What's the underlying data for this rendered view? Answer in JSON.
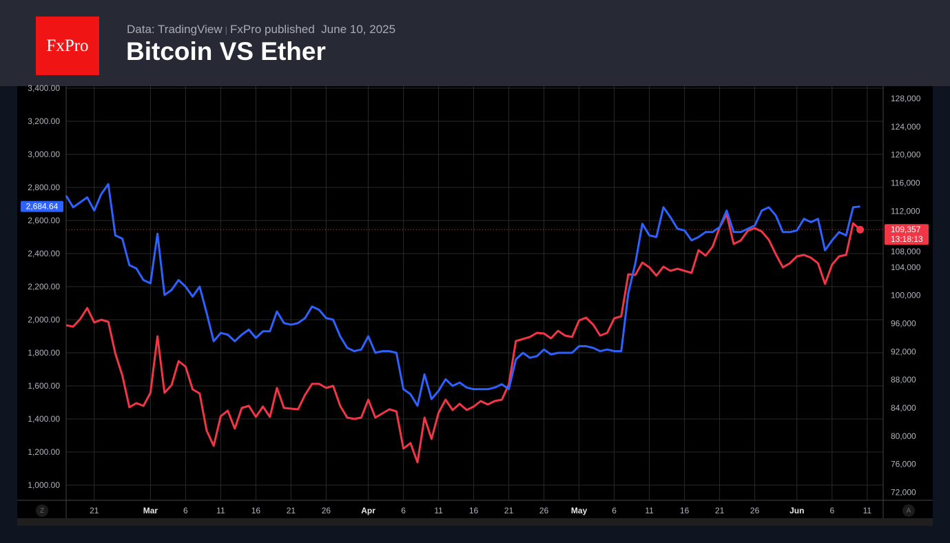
{
  "header": {
    "logo_text": "FxPro",
    "source": "Data: TradingView",
    "separator": "|",
    "publisher": "FxPro published",
    "date": "June 10, 2025",
    "title": "Bitcoin VS Ether"
  },
  "controls": {
    "left_button": "Z",
    "right_button": "A"
  },
  "chart_data": {
    "type": "line",
    "title": "Bitcoin VS Ether",
    "x_start": "2025-02-17",
    "x_interval_days": 1,
    "x_ticks": [
      {
        "day": 4,
        "label": "21",
        "bold": false
      },
      {
        "day": 12,
        "label": "Mar",
        "bold": true
      },
      {
        "day": 17,
        "label": "6",
        "bold": false
      },
      {
        "day": 22,
        "label": "11",
        "bold": false
      },
      {
        "day": 27,
        "label": "16",
        "bold": false
      },
      {
        "day": 32,
        "label": "21",
        "bold": false
      },
      {
        "day": 37,
        "label": "26",
        "bold": false
      },
      {
        "day": 43,
        "label": "Apr",
        "bold": true
      },
      {
        "day": 48,
        "label": "6",
        "bold": false
      },
      {
        "day": 53,
        "label": "11",
        "bold": false
      },
      {
        "day": 58,
        "label": "16",
        "bold": false
      },
      {
        "day": 63,
        "label": "21",
        "bold": false
      },
      {
        "day": 68,
        "label": "26",
        "bold": false
      },
      {
        "day": 73,
        "label": "May",
        "bold": true
      },
      {
        "day": 78,
        "label": "6",
        "bold": false
      },
      {
        "day": 83,
        "label": "11",
        "bold": false
      },
      {
        "day": 88,
        "label": "16",
        "bold": false
      },
      {
        "day": 93,
        "label": "21",
        "bold": false
      },
      {
        "day": 98,
        "label": "26",
        "bold": false
      },
      {
        "day": 104,
        "label": "Jun",
        "bold": true
      },
      {
        "day": 109,
        "label": "6",
        "bold": false
      },
      {
        "day": 114,
        "label": "11",
        "bold": false
      }
    ],
    "left_axis": {
      "ylim": [
        1000,
        3400
      ],
      "ticks": [
        3400,
        3200,
        3000,
        2800,
        2600,
        2400,
        2200,
        2000,
        1800,
        1600,
        1400,
        1200,
        1000
      ],
      "tick_labels": [
        "3,400.00",
        "3,200.00",
        "3,000.00",
        "2,800.00",
        "2,600.00",
        "2,400.00",
        "2,200.00",
        "2,000.00",
        "1,800.00",
        "1,600.00",
        "1,400.00",
        "1,200.00",
        "1,000.00"
      ]
    },
    "right_axis": {
      "ylim": [
        72000,
        128000
      ],
      "ticks": [
        128000,
        124000,
        120000,
        116000,
        112000,
        108000,
        104000,
        100000,
        96000,
        92000,
        88000,
        84000,
        80000,
        76000,
        72000
      ],
      "tick_labels": [
        "128,000",
        "124,000",
        "120,000",
        "116,000",
        "112,000",
        "108,000",
        "104,000",
        "100,000",
        "96,000",
        "92,000",
        "88,000",
        "84,000",
        "80,000",
        "76,000",
        "72,000"
      ]
    },
    "grid": true,
    "series": [
      {
        "name": "Ether",
        "axis": "left",
        "color": "#2e62ff",
        "last_label": "2,684.64",
        "values": [
          2750,
          2680,
          2710,
          2740,
          2660,
          2760,
          2820,
          2510,
          2490,
          2330,
          2310,
          2240,
          2220,
          2520,
          2150,
          2180,
          2240,
          2200,
          2140,
          2200,
          2040,
          1870,
          1920,
          1910,
          1870,
          1910,
          1940,
          1890,
          1930,
          1930,
          2050,
          1980,
          1970,
          1980,
          2010,
          2080,
          2060,
          2010,
          2000,
          1900,
          1830,
          1810,
          1820,
          1900,
          1800,
          1810,
          1810,
          1800,
          1580,
          1550,
          1480,
          1670,
          1520,
          1570,
          1640,
          1600,
          1620,
          1590,
          1580,
          1580,
          1580,
          1590,
          1610,
          1580,
          1760,
          1800,
          1770,
          1780,
          1820,
          1790,
          1800,
          1800,
          1800,
          1840,
          1840,
          1830,
          1810,
          1820,
          1810,
          1810,
          2160,
          2340,
          2580,
          2510,
          2500,
          2680,
          2620,
          2550,
          2540,
          2480,
          2500,
          2530,
          2530,
          2560,
          2660,
          2530,
          2530,
          2550,
          2570,
          2660,
          2680,
          2630,
          2530,
          2530,
          2540,
          2610,
          2590,
          2610,
          2420,
          2480,
          2530,
          2510,
          2680,
          2684.64
        ]
      },
      {
        "name": "Bitcoin",
        "axis": "right",
        "color": "#f23645",
        "last_label": "109,357",
        "countdown": "13:18:13",
        "values": [
          95760,
          95560,
          96640,
          98210,
          96150,
          96540,
          96250,
          91740,
          88600,
          84100,
          84680,
          84290,
          86150,
          94190,
          86150,
          87230,
          90660,
          89880,
          86640,
          86060,
          80760,
          78610,
          82820,
          83610,
          81060,
          84000,
          84290,
          82720,
          84190,
          82720,
          86840,
          84000,
          83900,
          83800,
          85860,
          87430,
          87430,
          86840,
          87130,
          84290,
          82630,
          82430,
          82630,
          85170,
          82630,
          83210,
          83800,
          83510,
          78220,
          79000,
          76260,
          82630,
          79590,
          83310,
          85170,
          83700,
          84590,
          83700,
          84190,
          84980,
          84490,
          84980,
          85170,
          87330,
          93500,
          93800,
          94090,
          94680,
          94580,
          93900,
          94970,
          94290,
          94090,
          96440,
          96840,
          95860,
          94290,
          94680,
          96740,
          97030,
          103010,
          102910,
          104680,
          103990,
          102810,
          104090,
          103500,
          103790,
          103500,
          103210,
          106440,
          105660,
          106930,
          109670,
          111540,
          107320,
          107810,
          109180,
          109580,
          109090,
          107910,
          105850,
          103990,
          104580,
          105560,
          105750,
          105360,
          104580,
          101640,
          104380,
          105560,
          105750,
          110260,
          109357
        ]
      }
    ]
  }
}
